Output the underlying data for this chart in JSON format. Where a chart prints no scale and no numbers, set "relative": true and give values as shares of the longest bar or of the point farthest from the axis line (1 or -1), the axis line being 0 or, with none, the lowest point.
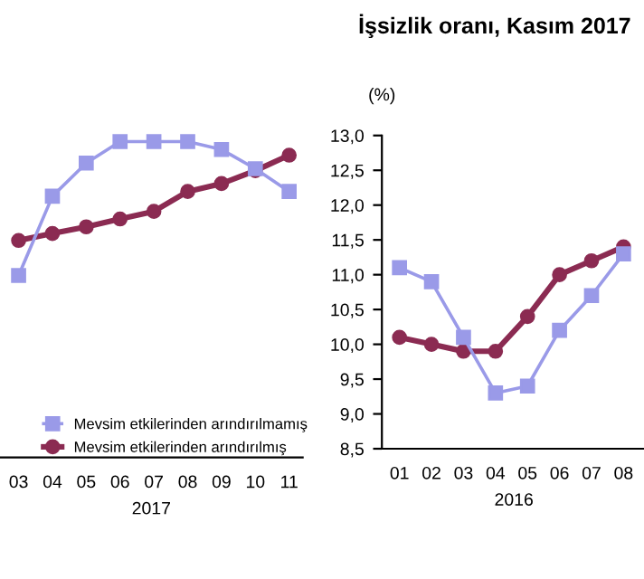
{
  "chart_data": [
    {
      "type": "line",
      "relative": true,
      "categories": [
        "03",
        "04",
        "05",
        "06",
        "07",
        "08",
        "09",
        "10",
        "11"
      ],
      "xlabel": "2017",
      "legend": "bottom",
      "grid": false,
      "tick_labels": "x",
      "series": [
        {
          "name": "Mevsim etkilerinden arındırılmamış",
          "color": "#9a9ae8",
          "marker": "square",
          "values": [
            0.576,
            0.827,
            0.932,
            1,
            1,
            1,
            0.975,
            0.914,
            0.842
          ]
        },
        {
          "name": "Mevsim etkilerinden arındırılmış",
          "color": "#8b2b52",
          "marker": "circle",
          "values": [
            0.687,
            0.709,
            0.73,
            0.755,
            0.779,
            0.842,
            0.867,
            0.908,
            0.957
          ]
        }
      ]
    },
    {
      "type": "line",
      "title": "İşsizlik oranı, Kasım 2017",
      "ylabel": "(%)",
      "categories": [
        "01",
        "02",
        "03",
        "04",
        "05",
        "06",
        "07",
        "08"
      ],
      "xlabel": "2016",
      "grid": false,
      "ylim": [
        8.5,
        13.0
      ],
      "yticks": [
        {
          "value": 8.5,
          "label": "8,5"
        },
        {
          "value": 9.0,
          "label": "9,0"
        },
        {
          "value": 9.5,
          "label": "9,5"
        },
        {
          "value": 10.0,
          "label": "10,0"
        },
        {
          "value": 10.5,
          "label": "10,5"
        },
        {
          "value": 11.0,
          "label": "11,0"
        },
        {
          "value": 11.5,
          "label": "11,5"
        },
        {
          "value": 12.0,
          "label": "12,0"
        },
        {
          "value": 12.5,
          "label": "12,5"
        },
        {
          "value": 13.0,
          "label": "13,0"
        }
      ],
      "series": [
        {
          "color": "#9a9ae8",
          "marker": "square",
          "values": [
            11.1,
            10.9,
            10.1,
            9.3,
            9.4,
            10.2,
            10.7,
            11.3
          ]
        },
        {
          "color": "#8b2b52",
          "marker": "circle",
          "values": [
            10.1,
            10.0,
            9.9,
            9.9,
            10.4,
            11.0,
            11.2,
            11.4
          ]
        }
      ]
    }
  ]
}
